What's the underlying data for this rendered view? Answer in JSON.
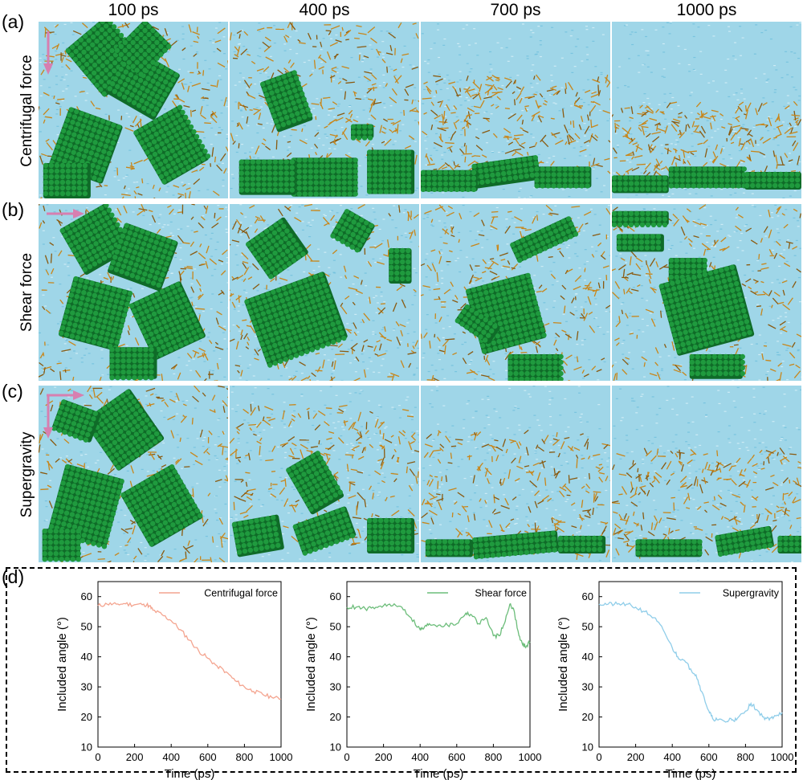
{
  "columns": [
    "100 ps",
    "400 ps",
    "700 ps",
    "1000 ps"
  ],
  "rows": [
    {
      "label": "(a)",
      "name": "Centrifugal force",
      "arrow": "down"
    },
    {
      "label": "(b)",
      "name": "Shear force",
      "arrow": "right"
    },
    {
      "label": "(c)",
      "name": "Supergravity",
      "arrow": "both"
    }
  ],
  "panel_d_label": "(d)",
  "colors": {
    "water": "#9fd6e8",
    "polymer": "#c8861a",
    "crystal": "#1f9a3e",
    "crystal_dark": "#0f6b28",
    "arrow": "#d77fb0",
    "centrifugal_line": "#f4a48f",
    "shear_line": "#6cbd7a",
    "supergravity_line": "#8fcde9"
  },
  "chart_data": [
    {
      "type": "line",
      "series": [
        {
          "name": "Centrifugal force",
          "x": [
            0,
            50,
            100,
            150,
            200,
            250,
            280,
            300,
            350,
            400,
            450,
            500,
            550,
            600,
            650,
            700,
            750,
            800,
            850,
            900,
            950,
            1000
          ],
          "values": [
            57,
            57.5,
            57.5,
            57.6,
            57.3,
            57.5,
            57,
            55.5,
            54,
            52,
            49,
            45.5,
            42,
            39.5,
            37,
            35,
            32,
            30,
            28.5,
            27.5,
            26.5,
            26
          ]
        }
      ],
      "xlabel": "Time (ps)",
      "ylabel": "Included angle (°)",
      "xlim": [
        0,
        1000
      ],
      "ylim": [
        10,
        65
      ],
      "xticks": [
        0,
        200,
        400,
        600,
        800,
        1000
      ],
      "yticks": [
        10,
        20,
        30,
        40,
        50,
        60
      ],
      "legend": "top-right"
    },
    {
      "type": "line",
      "series": [
        {
          "name": "Shear force",
          "x": [
            0,
            50,
            100,
            150,
            200,
            250,
            300,
            350,
            400,
            420,
            450,
            500,
            550,
            600,
            650,
            680,
            720,
            760,
            800,
            830,
            860,
            890,
            910,
            940,
            960,
            980,
            1000
          ],
          "values": [
            56.5,
            56.5,
            56,
            56,
            57,
            57,
            56.5,
            53,
            49,
            49.5,
            51,
            50.5,
            50.5,
            51,
            54.5,
            54,
            51,
            53,
            47,
            47,
            51,
            57.5,
            56,
            47,
            44,
            43.5,
            45
          ]
        }
      ],
      "xlabel": "Time (ps)",
      "ylabel": "Included angle (°)",
      "xlim": [
        0,
        1000
      ],
      "ylim": [
        10,
        65
      ],
      "xticks": [
        0,
        200,
        400,
        600,
        800,
        1000
      ],
      "yticks": [
        10,
        20,
        30,
        40,
        50,
        60
      ],
      "legend": "top-right"
    },
    {
      "type": "line",
      "series": [
        {
          "name": "Supergravity",
          "x": [
            0,
            50,
            100,
            150,
            200,
            250,
            300,
            350,
            400,
            430,
            460,
            500,
            530,
            560,
            600,
            620,
            650,
            700,
            720,
            750,
            800,
            830,
            860,
            900,
            930,
            960,
            1000
          ],
          "values": [
            57.5,
            57.5,
            57.5,
            57.5,
            56.5,
            55,
            53,
            49,
            43,
            40,
            39,
            36,
            34,
            28.5,
            22,
            19.5,
            19,
            18.5,
            19.5,
            19,
            22,
            24.5,
            22.5,
            20,
            19,
            20.5,
            21.5
          ]
        }
      ],
      "xlabel": "Time (ps)",
      "ylabel": "Included angle (°)",
      "xlim": [
        0,
        1000
      ],
      "ylim": [
        10,
        65
      ],
      "xticks": [
        0,
        200,
        400,
        600,
        800,
        1000
      ],
      "yticks": [
        10,
        20,
        30,
        40,
        50,
        60
      ],
      "legend": "top-right"
    }
  ]
}
